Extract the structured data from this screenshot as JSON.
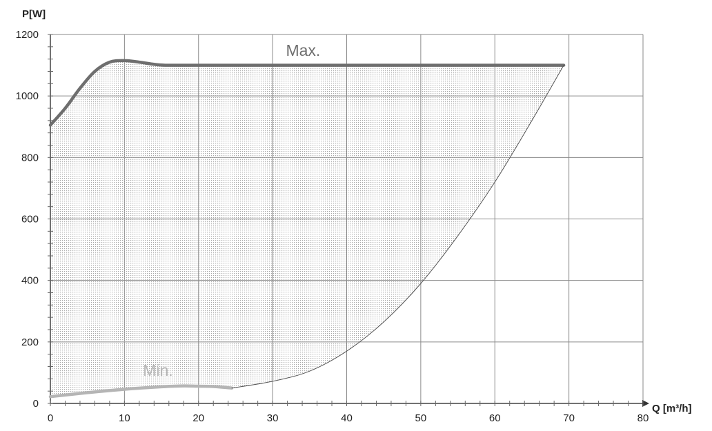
{
  "chart_data": {
    "type": "area",
    "xlabel": "Q [m³/h]",
    "ylabel": "P[W]",
    "xlim": [
      0,
      80
    ],
    "ylim": [
      0,
      1200
    ],
    "x_ticks": [
      0,
      10,
      20,
      30,
      40,
      50,
      60,
      70,
      80
    ],
    "y_ticks": [
      0,
      200,
      400,
      600,
      800,
      1000,
      1200
    ],
    "grid": true,
    "series": [
      {
        "name": "Max.",
        "color": "#6e6e6e",
        "x": [
          0,
          2,
          4,
          6,
          8,
          10,
          12,
          14,
          15.5,
          20,
          30,
          40,
          50,
          60,
          69.3
        ],
        "y": [
          905,
          960,
          1025,
          1080,
          1110,
          1115,
          1110,
          1103,
          1100,
          1100,
          1100,
          1100,
          1100,
          1100,
          1100
        ]
      },
      {
        "name": "Min.",
        "color": "#b5b5b5",
        "x": [
          0,
          5,
          10,
          15,
          18,
          20,
          22,
          24.5
        ],
        "y": [
          22,
          35,
          46,
          54,
          57,
          56,
          55,
          50
        ]
      },
      {
        "name": "",
        "color": "#555555",
        "x": [
          24.5,
          30,
          35,
          40,
          45,
          50,
          55,
          60,
          65,
          69.3
        ],
        "y": [
          50,
          72,
          105,
          170,
          265,
          390,
          545,
          720,
          920,
          1100
        ]
      }
    ]
  }
}
